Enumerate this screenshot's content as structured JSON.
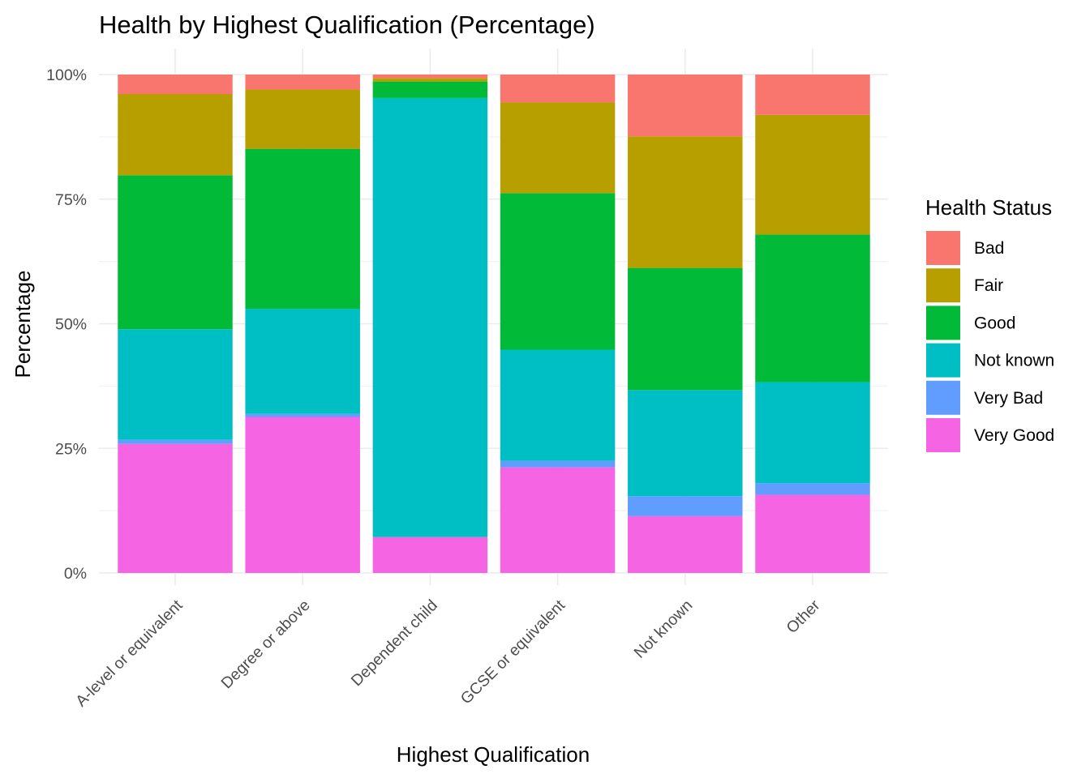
{
  "chart_data": {
    "type": "bar",
    "stacked": true,
    "normalized": true,
    "title": "Health by Highest Qualification (Percentage)",
    "xlabel": "Highest Qualification",
    "ylabel": "Percentage",
    "ylim": [
      0,
      100
    ],
    "y_ticks": [
      "0%",
      "25%",
      "50%",
      "75%",
      "100%"
    ],
    "categories": [
      "A-level or equivalent",
      "Degree or above",
      "Dependent child",
      "GCSE or equivalent",
      "Not known",
      "Other"
    ],
    "legend_title": "Health Status",
    "legend_position": "right",
    "grid": true,
    "series": [
      {
        "name": "Bad",
        "color": "#F8766D",
        "values": [
          3.9,
          3.0,
          0.7,
          5.6,
          12.4,
          8.1
        ]
      },
      {
        "name": "Fair",
        "color": "#B79F00",
        "values": [
          16.3,
          11.9,
          0.7,
          18.2,
          26.4,
          24.0
        ]
      },
      {
        "name": "Good",
        "color": "#00BA38",
        "values": [
          30.9,
          32.1,
          3.3,
          31.4,
          24.5,
          29.6
        ]
      },
      {
        "name": "Not known",
        "color": "#00BFC4",
        "values": [
          22.2,
          21.1,
          88.1,
          22.3,
          21.3,
          20.3
        ]
      },
      {
        "name": "Very Bad",
        "color": "#619CFF",
        "values": [
          0.8,
          0.6,
          0.0,
          1.3,
          4.0,
          2.3
        ]
      },
      {
        "name": "Very Good",
        "color": "#F564E3",
        "values": [
          25.9,
          31.3,
          7.2,
          21.2,
          11.4,
          15.7
        ]
      }
    ]
  }
}
